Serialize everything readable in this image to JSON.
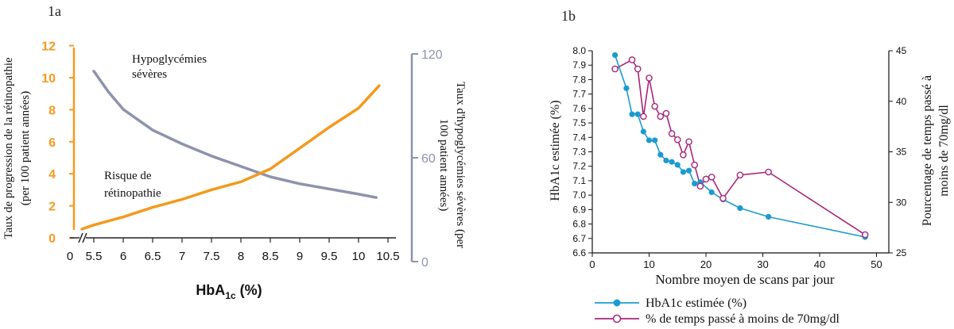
{
  "panel_a_label": "1a",
  "panel_b_label": "1b",
  "chart_data": [
    {
      "type": "line",
      "panel": "1a",
      "x": [
        5.4,
        5.7,
        6.0,
        6.5,
        7.0,
        7.5,
        8.0,
        8.5,
        9.0,
        9.5,
        10.0,
        10.35
      ],
      "x_ticks": [
        "0",
        "5.5",
        "6",
        "6.5",
        "7",
        "7.5",
        "8",
        "8.5",
        "9",
        "9.5",
        "10",
        "10.5"
      ],
      "xlim": [
        5.3,
        10.6
      ],
      "xlabel_main": "HbA",
      "xlabel_sub": "1c",
      "xlabel_unit": " (%)",
      "y_left": {
        "label_lines": [
          "Taux de progression de la rétinopathie",
          "(per 100 patient années)"
        ],
        "ticks": [
          "0",
          "2",
          "4",
          "6",
          "8",
          "10",
          "12"
        ],
        "ylim": [
          0,
          12
        ],
        "color": "#F39A1E"
      },
      "y_right": {
        "label_lines": [
          "Taux d'hypoglycémies sévères (per",
          "100 patient années)"
        ],
        "ticks": [
          "0",
          "60",
          "120"
        ],
        "ylim": [
          0,
          120
        ],
        "color": "#8E93AC"
      },
      "series": [
        {
          "name": "Risque de rétinopathie",
          "label_lines": [
            "Risque de",
            "rétinopathie"
          ],
          "axis": "left",
          "color": "#F39A1E",
          "x": [
            5.3,
            5.5,
            6.0,
            6.5,
            7.0,
            7.5,
            8.0,
            8.5,
            9.0,
            9.5,
            10.0,
            10.35
          ],
          "values": [
            0.55,
            0.8,
            1.3,
            1.9,
            2.4,
            3.0,
            3.5,
            4.3,
            5.6,
            6.9,
            8.1,
            9.5
          ]
        },
        {
          "name": "Hypoglycémies sévères",
          "label_lines": [
            "Hypoglycémies",
            "sévères"
          ],
          "axis": "right",
          "color": "#8E93AC",
          "x": [
            5.5,
            5.75,
            6.0,
            6.5,
            7.0,
            7.5,
            8.0,
            8.5,
            9.0,
            9.5,
            10.0,
            10.3
          ],
          "values": [
            110,
            98,
            88,
            76,
            68,
            61,
            55,
            49,
            45,
            42,
            39,
            37
          ]
        }
      ]
    },
    {
      "type": "line",
      "panel": "1b",
      "xlabel": "Nombre moyen de scans par jour",
      "xlim": [
        0,
        50
      ],
      "x_ticks": [
        "0",
        "10",
        "20",
        "30",
        "40",
        "50"
      ],
      "y_left": {
        "label": "HbA1c estimée (%)",
        "ylim": [
          6.6,
          8.0
        ],
        "ticks": [
          "6.6",
          "6.7",
          "6.8",
          "6.9",
          "7.0",
          "7.1",
          "7.2",
          "7.3",
          "7.4",
          "7.5",
          "7.6",
          "7.7",
          "7.8",
          "7.9",
          "8.0"
        ]
      },
      "y_right": {
        "label_lines": [
          "Pourcentage de temps passé à",
          "moins de 70mg/dl"
        ],
        "ylim": [
          25,
          45
        ],
        "ticks": [
          "25",
          "30",
          "35",
          "40",
          "45"
        ]
      },
      "series": [
        {
          "name": "HbA1c estimée (%)",
          "axis": "left",
          "color": "#1B9BD1",
          "marker": "filled-circle",
          "x": [
            4,
            6,
            7,
            8,
            9,
            10,
            11,
            12,
            13,
            14,
            15,
            16,
            17,
            18,
            19,
            21,
            23,
            26,
            31,
            48
          ],
          "values": [
            7.97,
            7.74,
            7.56,
            7.56,
            7.44,
            7.38,
            7.38,
            7.28,
            7.24,
            7.23,
            7.21,
            7.16,
            7.17,
            7.08,
            7.09,
            7.02,
            6.97,
            6.91,
            6.85,
            6.71
          ]
        },
        {
          "name": "% de temps passé à moins de 70mg/dl",
          "axis": "right",
          "color": "#A8267A",
          "marker": "open-circle",
          "x": [
            4,
            7,
            8,
            9,
            10,
            11,
            12,
            13,
            14,
            15,
            16,
            17,
            18,
            19,
            20,
            21,
            23,
            26,
            31,
            48
          ],
          "values": [
            43.2,
            44.1,
            43.2,
            38.5,
            42.3,
            39.5,
            38.5,
            38.8,
            36.8,
            36.2,
            34.7,
            36.0,
            33.7,
            31.6,
            32.3,
            32.5,
            30.4,
            32.7,
            33.0,
            26.8
          ]
        }
      ],
      "legend": {
        "placement": "bottom-left",
        "entries": [
          "HbA1c estimée (%)",
          "% de temps passé à moins de 70mg/dl"
        ]
      }
    }
  ]
}
